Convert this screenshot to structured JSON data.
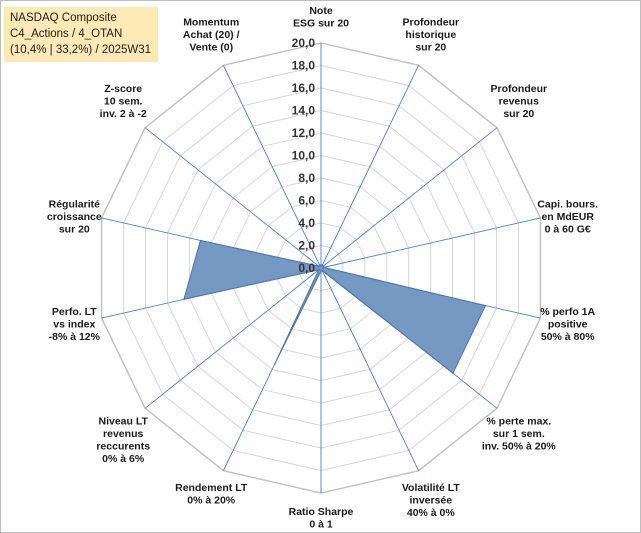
{
  "header": {
    "line1": "NASDAQ Composite",
    "line2": "C4_Actions / 4_OTAN",
    "line3": "(10,4% | 33,2%) / 2025W31"
  },
  "colors": {
    "fill": "#6f93c0",
    "stroke": "#4a74a8",
    "spoke": "#4d7ebf",
    "grid": "#d6d6d6"
  },
  "chart_data": {
    "type": "radar",
    "rmin": 0,
    "rmax": 20,
    "ticks": [
      "0,0",
      "2,0",
      "4,0",
      "6,0",
      "8,0",
      "10,0",
      "12,0",
      "14,0",
      "16,0",
      "18,0",
      "20,0"
    ],
    "axes": [
      {
        "label": [
          "Note",
          "ESG sur 20"
        ],
        "value": 0
      },
      {
        "label": [
          "Profondeur",
          "historique",
          "sur 20"
        ],
        "value": 0
      },
      {
        "label": [
          "Profondeur",
          "revenus",
          "sur 20"
        ],
        "value": 0
      },
      {
        "label": [
          "Capi. bours.",
          "en MdEUR",
          "0 à 60 G€"
        ],
        "value": 0
      },
      {
        "label": [
          "% perfo 1A",
          "positive",
          "50% à 80%"
        ],
        "value": 15.0
      },
      {
        "label": [
          "% perte max.",
          "sur 1 sem.",
          "inv. 50% à 20%"
        ],
        "value": 15.0
      },
      {
        "label": [
          "Volatilité LT",
          "inversée",
          "40% à 0%"
        ],
        "value": 0
      },
      {
        "label": [
          "Ratio Sharpe",
          "0 à 1"
        ],
        "value": 0
      },
      {
        "label": [
          "Rendement LT",
          "0% à 20%"
        ],
        "value": 9.5
      },
      {
        "label": [
          "Niveau LT",
          "revenus",
          "reccurents",
          "0% à 6%"
        ],
        "value": 0
      },
      {
        "label": [
          "Perfo. LT",
          "vs index",
          "-8% à 12%"
        ],
        "value": 12.5
      },
      {
        "label": [
          "Régularité",
          "croissance",
          "sur 20"
        ],
        "value": 11.0
      },
      {
        "label": [
          "Z-score",
          "10 sem.",
          "inv. 2 à -2"
        ],
        "value": 0
      },
      {
        "label": [
          "Momentum",
          "Achat (20) /",
          "Vente (0)"
        ],
        "value": 0
      }
    ]
  }
}
